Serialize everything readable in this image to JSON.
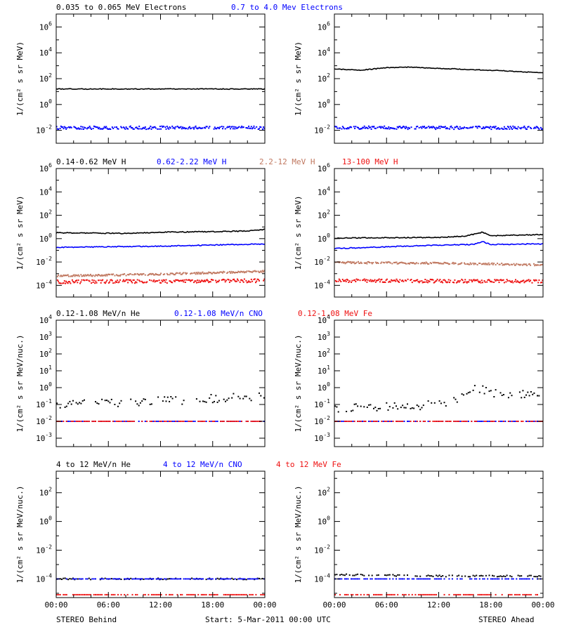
{
  "figure": {
    "footer": {
      "left": "STEREO Behind",
      "center": "Start:  5-Mar-2011 00:00 UTC",
      "right": "STEREO Ahead"
    }
  },
  "chart_data": [
    {
      "id": "row1",
      "type": "scatter",
      "ylabel": "1/(cm² s sr MeV)",
      "y_scale": "log",
      "ylim_exp": [
        -3,
        7
      ],
      "ytick_exps": [
        -2,
        0,
        2,
        4,
        6
      ],
      "grid": false,
      "xlim_hours": [
        0,
        24
      ],
      "xticks": [
        "00:00",
        "06:00",
        "12:00",
        "18:00",
        "00:00"
      ],
      "legend": [
        {
          "text": "0.035 to 0.065 MeV Electrons",
          "color": "#000000"
        },
        {
          "text": "0.7 to 4.0 Mev Electrons",
          "color": "#0000ff"
        }
      ],
      "series": [
        {
          "color": "#000000",
          "style": "line",
          "noise": 0.03,
          "behind": [
            [
              0,
              1.2
            ],
            [
              6,
              1.2
            ],
            [
              12,
              1.2
            ],
            [
              18,
              1.2
            ],
            [
              24,
              1.2
            ]
          ],
          "ahead": [
            [
              0,
              2.75
            ],
            [
              3,
              2.65
            ],
            [
              6,
              2.85
            ],
            [
              8,
              2.9
            ],
            [
              12,
              2.8
            ],
            [
              18,
              2.65
            ],
            [
              24,
              2.45
            ]
          ]
        },
        {
          "color": "#0000ff",
          "style": "points",
          "noise": 0.12,
          "behind": [
            [
              0,
              -1.8
            ],
            [
              24,
              -1.8
            ]
          ],
          "ahead": [
            [
              0,
              -1.8
            ],
            [
              24,
              -1.8
            ]
          ]
        }
      ]
    },
    {
      "id": "row2",
      "type": "scatter",
      "ylabel": "1/(cm² s sr MeV)",
      "y_scale": "log",
      "ylim_exp": [
        -5,
        6
      ],
      "ytick_exps": [
        -4,
        -2,
        0,
        2,
        4,
        6
      ],
      "grid": false,
      "xlim_hours": [
        0,
        24
      ],
      "xticks": [
        "00:00",
        "06:00",
        "12:00",
        "18:00",
        "00:00"
      ],
      "legend": [
        {
          "text": "0.14-0.62 MeV H",
          "color": "#000000"
        },
        {
          "text": "0.62-2.22 MeV H",
          "color": "#0000ff"
        },
        {
          "text": "2.2-12 MeV H",
          "color": "#c07860"
        },
        {
          "text": "13-100 MeV H",
          "color": "#ee1111"
        }
      ],
      "series": [
        {
          "color": "#000000",
          "style": "line",
          "noise": 0.04,
          "behind": [
            [
              0,
              0.5
            ],
            [
              8,
              0.45
            ],
            [
              12,
              0.55
            ],
            [
              18,
              0.6
            ],
            [
              22,
              0.65
            ],
            [
              24,
              0.8
            ]
          ],
          "ahead": [
            [
              0,
              0.05
            ],
            [
              12,
              0.1
            ],
            [
              15,
              0.2
            ],
            [
              17,
              0.55
            ],
            [
              18,
              0.25
            ],
            [
              24,
              0.35
            ]
          ]
        },
        {
          "color": "#0000ff",
          "style": "line",
          "noise": 0.04,
          "behind": [
            [
              0,
              -0.75
            ],
            [
              12,
              -0.65
            ],
            [
              24,
              -0.45
            ]
          ],
          "ahead": [
            [
              0,
              -0.85
            ],
            [
              12,
              -0.55
            ],
            [
              16,
              -0.5
            ],
            [
              17,
              -0.25
            ],
            [
              18,
              -0.5
            ],
            [
              24,
              -0.45
            ]
          ]
        },
        {
          "color": "#c07860",
          "style": "points",
          "noise": 0.08,
          "behind": [
            [
              0,
              -3.2
            ],
            [
              12,
              -3.05
            ],
            [
              24,
              -2.8
            ]
          ],
          "ahead": [
            [
              0,
              -2.05
            ],
            [
              12,
              -2.1
            ],
            [
              24,
              -2.25
            ]
          ]
        },
        {
          "color": "#ee1111",
          "style": "points",
          "noise": 0.15,
          "behind": [
            [
              0,
              -3.7
            ],
            [
              24,
              -3.6
            ]
          ],
          "ahead": [
            [
              0,
              -3.6
            ],
            [
              24,
              -3.65
            ]
          ]
        }
      ]
    },
    {
      "id": "row3",
      "type": "scatter",
      "ylabel": "1/(cm² s sr MeV/nuc.)",
      "y_scale": "log",
      "ylim_exp": [
        -3.5,
        4
      ],
      "ytick_exps": [
        -3,
        -2,
        -1,
        0,
        1,
        2,
        3,
        4
      ],
      "grid": false,
      "xlim_hours": [
        0,
        24
      ],
      "xticks": [
        "00:00",
        "06:00",
        "12:00",
        "18:00",
        "00:00"
      ],
      "legend": [
        {
          "text": "0.12-1.08 MeV/n He",
          "color": "#000000"
        },
        {
          "text": "0.12-1.08 MeV/n CNO",
          "color": "#0000ff"
        },
        {
          "text": "0.12-1.08 MeV Fe",
          "color": "#ee1111"
        }
      ],
      "series": [
        {
          "color": "#000000",
          "style": "sparse",
          "noise": 0.25,
          "behind": [
            [
              0,
              -1.0
            ],
            [
              12,
              -0.8
            ],
            [
              24,
              -0.5
            ]
          ],
          "ahead": [
            [
              0,
              -1.2
            ],
            [
              10,
              -1.1
            ],
            [
              14,
              -0.8
            ],
            [
              16,
              0.1
            ],
            [
              18,
              -0.3
            ],
            [
              24,
              -0.5
            ]
          ]
        },
        {
          "color": "#0000ff",
          "style": "sparse",
          "noise": 0.0,
          "behind": [
            [
              0,
              -2.0
            ],
            [
              24,
              -2.0
            ]
          ],
          "ahead": [
            [
              0,
              -2.0
            ],
            [
              24,
              -2.0
            ]
          ]
        },
        {
          "color": "#ee1111",
          "style": "sparse",
          "noise": 0.0,
          "behind": [
            [
              0,
              -2.0
            ],
            [
              24,
              -2.0
            ]
          ],
          "ahead": [
            [
              0,
              -2.0
            ],
            [
              24,
              -2.0
            ]
          ]
        }
      ]
    },
    {
      "id": "row4",
      "type": "scatter",
      "ylabel": "1/(cm² s sr MeV/nuc.)",
      "y_scale": "log",
      "ylim_exp": [
        -5.3,
        3.5
      ],
      "ytick_exps": [
        -4,
        -2,
        0,
        2
      ],
      "grid": false,
      "xlim_hours": [
        0,
        24
      ],
      "xticks": [
        "00:00",
        "06:00",
        "12:00",
        "18:00",
        "00:00"
      ],
      "legend": [
        {
          "text": "4 to 12 MeV/n He",
          "color": "#000000"
        },
        {
          "text": "4 to 12 MeV/n CNO",
          "color": "#0000ff"
        },
        {
          "text": "4 to 12 MeV Fe",
          "color": "#ee1111"
        }
      ],
      "series": [
        {
          "color": "#000000",
          "style": "sparse",
          "noise": 0.05,
          "behind": [
            [
              0,
              -4.0
            ],
            [
              24,
              -4.0
            ]
          ],
          "ahead": [
            [
              0,
              -3.7
            ],
            [
              12,
              -3.8
            ],
            [
              24,
              -3.8
            ]
          ]
        },
        {
          "color": "#0000ff",
          "style": "sparse",
          "noise": 0.0,
          "behind": [
            [
              0,
              -4.0
            ],
            [
              24,
              -4.0
            ]
          ],
          "ahead": [
            [
              0,
              -4.0
            ],
            [
              24,
              -4.0
            ]
          ]
        },
        {
          "color": "#ee1111",
          "style": "sparse",
          "noise": 0.0,
          "behind": [
            [
              0,
              -5.1
            ],
            [
              24,
              -5.1
            ]
          ],
          "ahead": [
            [
              0,
              -5.1
            ],
            [
              24,
              -5.1
            ]
          ]
        }
      ]
    }
  ]
}
